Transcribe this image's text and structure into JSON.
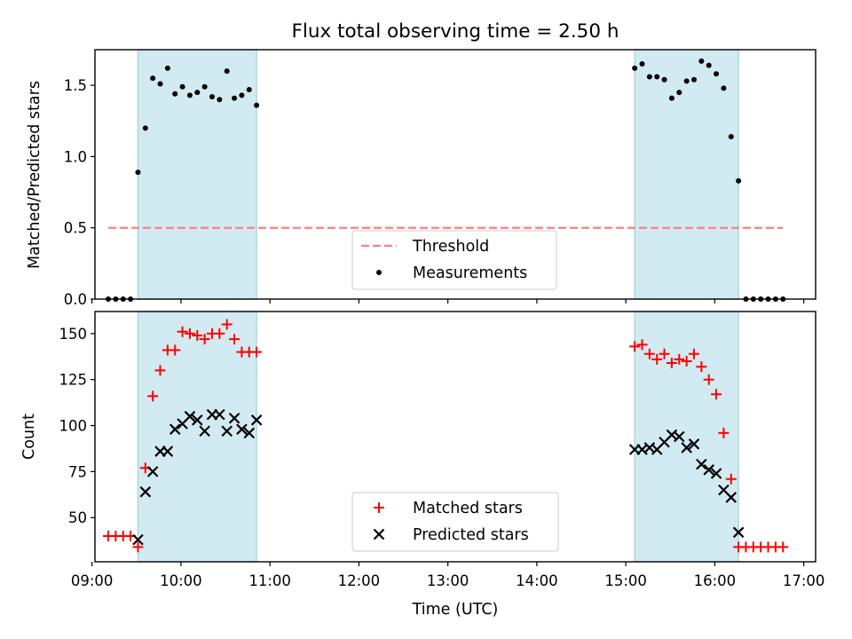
{
  "chart_data": [
    {
      "type": "scatter",
      "title": "Flux total observing time = 2.50 h",
      "xlabel": "",
      "ylabel": "Matched/Predicted stars",
      "xlim": [
        "09:02",
        "17:08"
      ],
      "ylim": [
        0,
        1.75
      ],
      "y_ticks": [
        0.0,
        0.5,
        1.0,
        1.5
      ],
      "y_tick_labels": [
        "0.0",
        "0.5",
        "1.0",
        "1.5"
      ],
      "shaded_intervals": [
        [
          "09:31",
          "10:51"
        ],
        [
          "15:06",
          "16:16"
        ]
      ],
      "shade_color": "#add8e6",
      "threshold": {
        "name": "Threshold",
        "value": 0.5,
        "x_range": [
          "09:11",
          "16:46"
        ],
        "color": "#ff7f7f"
      },
      "series": [
        {
          "name": "Measurements",
          "marker": "dot",
          "color": "#000000",
          "points": [
            [
              "09:11",
              0
            ],
            [
              "09:16",
              0
            ],
            [
              "09:21",
              0
            ],
            [
              "09:26",
              0
            ],
            [
              "09:31",
              0.89
            ],
            [
              "09:36",
              1.2
            ],
            [
              "09:41",
              1.55
            ],
            [
              "09:46",
              1.51
            ],
            [
              "09:51",
              1.62
            ],
            [
              "09:56",
              1.44
            ],
            [
              "10:01",
              1.49
            ],
            [
              "10:06",
              1.43
            ],
            [
              "10:11",
              1.45
            ],
            [
              "10:16",
              1.49
            ],
            [
              "10:21",
              1.42
            ],
            [
              "10:26",
              1.4
            ],
            [
              "10:31",
              1.6
            ],
            [
              "10:36",
              1.41
            ],
            [
              "10:41",
              1.43
            ],
            [
              "10:46",
              1.47
            ],
            [
              "10:51",
              1.36
            ],
            [
              "15:06",
              1.62
            ],
            [
              "15:11",
              1.65
            ],
            [
              "15:16",
              1.56
            ],
            [
              "15:21",
              1.56
            ],
            [
              "15:26",
              1.54
            ],
            [
              "15:31",
              1.41
            ],
            [
              "15:36",
              1.45
            ],
            [
              "15:41",
              1.53
            ],
            [
              "15:46",
              1.54
            ],
            [
              "15:51",
              1.67
            ],
            [
              "15:56",
              1.64
            ],
            [
              "16:01",
              1.58
            ],
            [
              "16:06",
              1.48
            ],
            [
              "16:11",
              1.14
            ],
            [
              "16:16",
              0.83
            ],
            [
              "16:21",
              0
            ],
            [
              "16:26",
              0
            ],
            [
              "16:31",
              0
            ],
            [
              "16:36",
              0
            ],
            [
              "16:41",
              0
            ],
            [
              "16:46",
              0
            ]
          ]
        }
      ],
      "legend": {
        "position": "lower-center",
        "entries": [
          "Threshold",
          "Measurements"
        ]
      }
    },
    {
      "type": "scatter",
      "title": "",
      "xlabel": "Time (UTC)",
      "ylabel": "Count",
      "xlim": [
        "09:02",
        "17:08"
      ],
      "ylim": [
        26,
        162
      ],
      "y_ticks": [
        50,
        75,
        100,
        125,
        150
      ],
      "y_tick_labels": [
        "50",
        "75",
        "100",
        "125",
        "150"
      ],
      "x_ticks": [
        "09:00",
        "10:00",
        "11:00",
        "12:00",
        "13:00",
        "14:00",
        "15:00",
        "16:00",
        "17:00"
      ],
      "x_tick_labels": [
        "09:00",
        "10:00",
        "11:00",
        "12:00",
        "13:00",
        "14:00",
        "15:00",
        "16:00",
        "17:00"
      ],
      "shaded_intervals": [
        [
          "09:31",
          "10:51"
        ],
        [
          "15:06",
          "16:16"
        ]
      ],
      "shade_color": "#add8e6",
      "series": [
        {
          "name": "Matched stars",
          "marker": "plus",
          "color": "#ff0000",
          "points": [
            [
              "09:11",
              40
            ],
            [
              "09:16",
              40
            ],
            [
              "09:21",
              40
            ],
            [
              "09:26",
              40
            ],
            [
              "09:31",
              34
            ],
            [
              "09:36",
              77
            ],
            [
              "09:41",
              116
            ],
            [
              "09:46",
              130
            ],
            [
              "09:51",
              141
            ],
            [
              "09:56",
              141
            ],
            [
              "10:01",
              151
            ],
            [
              "10:06",
              150
            ],
            [
              "10:11",
              149
            ],
            [
              "10:16",
              147
            ],
            [
              "10:21",
              150
            ],
            [
              "10:26",
              150
            ],
            [
              "10:31",
              155
            ],
            [
              "10:36",
              147
            ],
            [
              "10:41",
              140
            ],
            [
              "10:46",
              140
            ],
            [
              "10:51",
              140
            ],
            [
              "15:06",
              143
            ],
            [
              "15:11",
              144
            ],
            [
              "15:16",
              139
            ],
            [
              "15:21",
              136
            ],
            [
              "15:26",
              139
            ],
            [
              "15:31",
              134
            ],
            [
              "15:36",
              136
            ],
            [
              "15:41",
              135
            ],
            [
              "15:46",
              139
            ],
            [
              "15:51",
              132
            ],
            [
              "15:56",
              125
            ],
            [
              "16:01",
              117
            ],
            [
              "16:06",
              96
            ],
            [
              "16:11",
              71
            ],
            [
              "16:16",
              34
            ],
            [
              "16:21",
              34
            ],
            [
              "16:26",
              34
            ],
            [
              "16:31",
              34
            ],
            [
              "16:36",
              34
            ],
            [
              "16:41",
              34
            ],
            [
              "16:46",
              34
            ]
          ]
        },
        {
          "name": "Predicted stars",
          "marker": "x",
          "color": "#000000",
          "points": [
            [
              "09:31",
              38
            ],
            [
              "09:36",
              64
            ],
            [
              "09:41",
              75
            ],
            [
              "09:46",
              86
            ],
            [
              "09:51",
              86
            ],
            [
              "09:56",
              98
            ],
            [
              "10:01",
              101
            ],
            [
              "10:06",
              105
            ],
            [
              "10:11",
              103
            ],
            [
              "10:16",
              97
            ],
            [
              "10:21",
              106
            ],
            [
              "10:26",
              106
            ],
            [
              "10:31",
              97
            ],
            [
              "10:36",
              104
            ],
            [
              "10:41",
              98
            ],
            [
              "10:46",
              96
            ],
            [
              "10:51",
              103
            ],
            [
              "15:06",
              87
            ],
            [
              "15:11",
              87
            ],
            [
              "15:16",
              88
            ],
            [
              "15:21",
              87
            ],
            [
              "15:26",
              91
            ],
            [
              "15:31",
              95
            ],
            [
              "15:36",
              94
            ],
            [
              "15:41",
              88
            ],
            [
              "15:46",
              90
            ],
            [
              "15:51",
              79
            ],
            [
              "15:56",
              76
            ],
            [
              "16:01",
              74
            ],
            [
              "16:06",
              65
            ],
            [
              "16:11",
              61
            ],
            [
              "16:16",
              42
            ]
          ]
        }
      ],
      "legend": {
        "position": "lower-center",
        "entries": [
          "Matched stars",
          "Predicted stars"
        ]
      }
    }
  ]
}
